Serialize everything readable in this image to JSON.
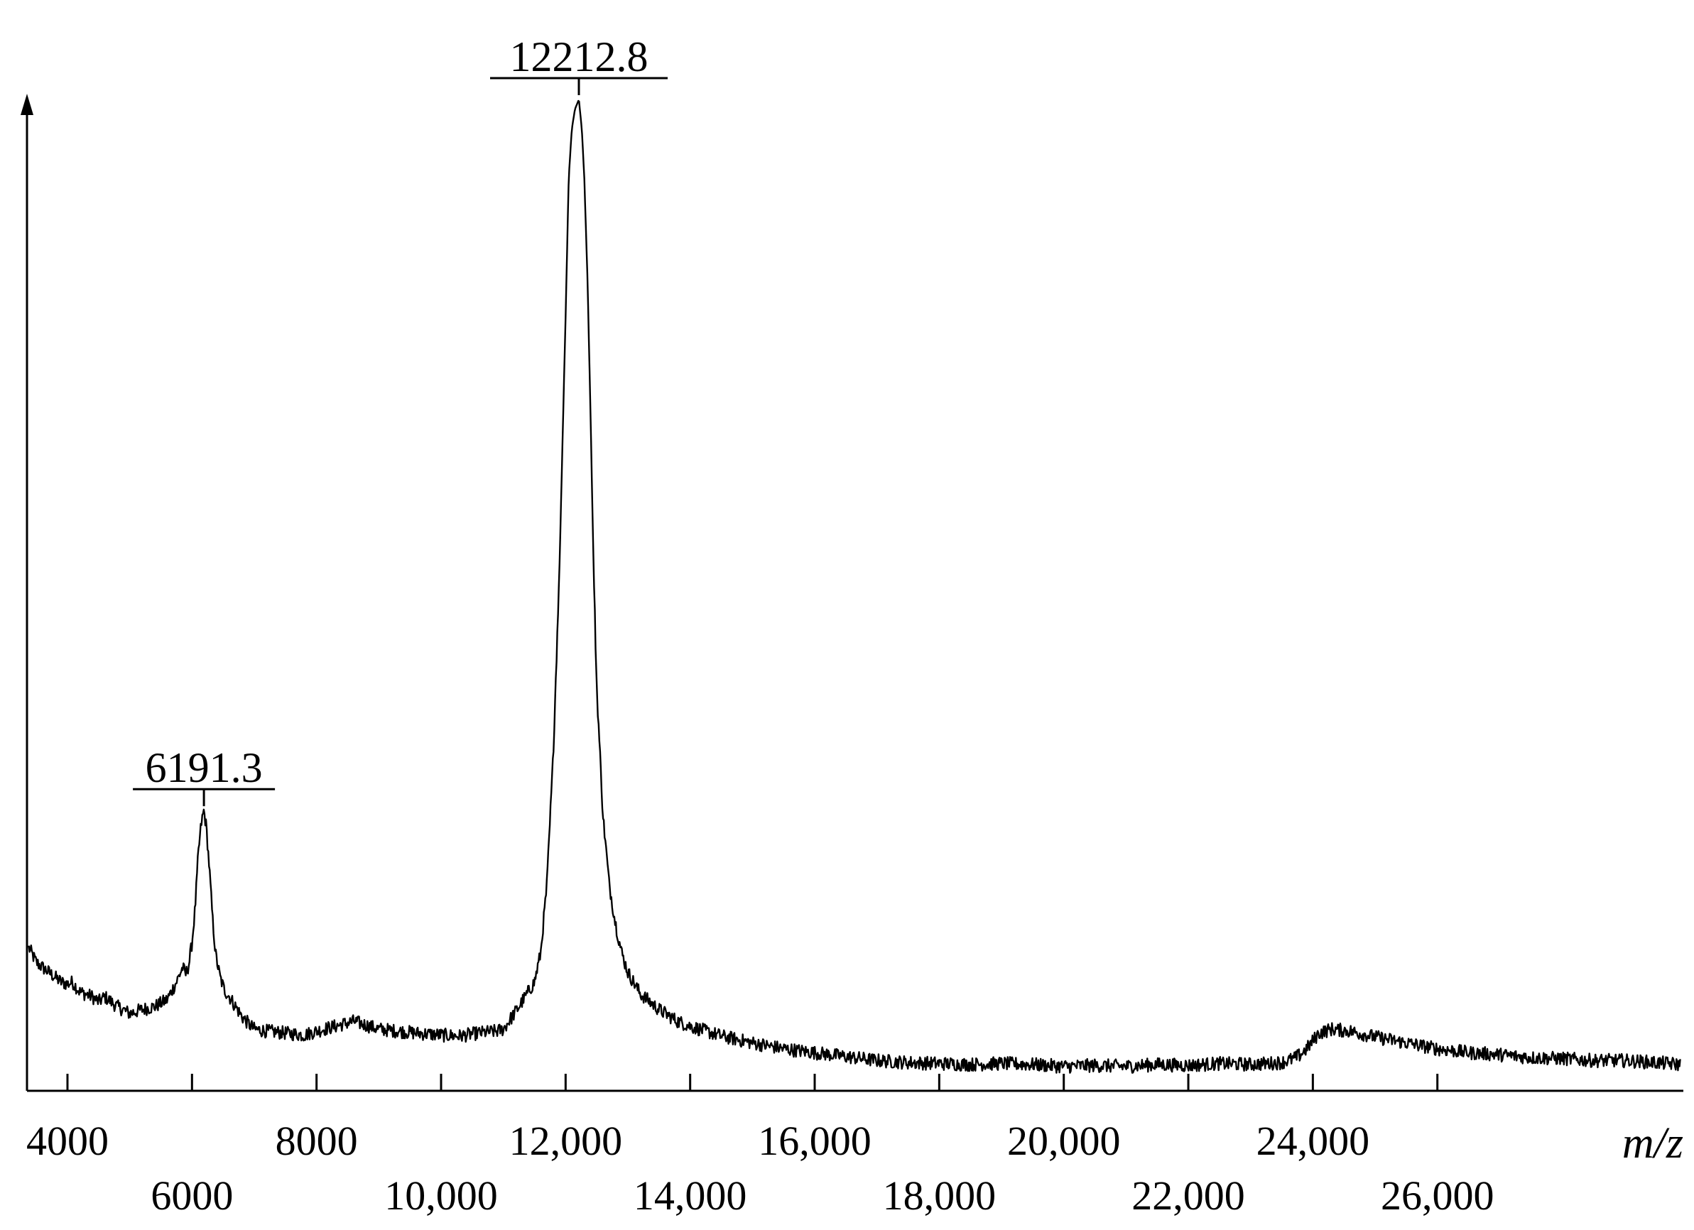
{
  "chart_data": {
    "type": "line",
    "title": "",
    "xlabel": "m/z",
    "ylabel": "",
    "xlim": [
      3350,
      29950
    ],
    "ylim": [
      0,
      1.0
    ],
    "grid": false,
    "legend": "none",
    "x_ticks": [
      {
        "value": 4000,
        "label": "4000",
        "row": "upper"
      },
      {
        "value": 6000,
        "label": "6000",
        "row": "lower"
      },
      {
        "value": 8000,
        "label": "8000",
        "row": "upper"
      },
      {
        "value": 10000,
        "label": "10,000",
        "row": "lower"
      },
      {
        "value": 12000,
        "label": "12,000",
        "row": "upper"
      },
      {
        "value": 14000,
        "label": "14,000",
        "row": "lower"
      },
      {
        "value": 16000,
        "label": "16,000",
        "row": "upper"
      },
      {
        "value": 18000,
        "label": "18,000",
        "row": "lower"
      },
      {
        "value": 20000,
        "label": "20,000",
        "row": "upper"
      },
      {
        "value": 22000,
        "label": "22,000",
        "row": "lower"
      },
      {
        "value": 24000,
        "label": "24,000",
        "row": "upper"
      },
      {
        "value": 26000,
        "label": "26,000",
        "row": "lower"
      }
    ],
    "annotations": [
      {
        "label": "6191.3",
        "x": 6191.3,
        "y": 0.275
      },
      {
        "label": "12212.8",
        "x": 12212.8,
        "y": 1.0
      }
    ],
    "series": [
      {
        "color": "#000000",
        "x": [
          3380,
          3500,
          3700,
          3900,
          4000,
          4080,
          4200,
          4400,
          4500,
          4600,
          4800,
          5000,
          5200,
          5400,
          5600,
          5750,
          5850,
          5900,
          5950,
          6000,
          6050,
          6100,
          6150,
          6191.3,
          6230,
          6280,
          6330,
          6380,
          6450,
          6520,
          6600,
          6700,
          6800,
          6900,
          7000,
          7200,
          7500,
          7800,
          8000,
          8300,
          8600,
          8800,
          9000,
          9300,
          9600,
          10000,
          10300,
          10600,
          10900,
          11000,
          11200,
          11350,
          11500,
          11600,
          11700,
          11800,
          11900,
          12000,
          12050,
          12100,
          12150,
          12212.8,
          12260,
          12300,
          12350,
          12400,
          12450,
          12500,
          12600,
          12700,
          12800,
          12900,
          13000,
          13200,
          13500,
          13800,
          14000,
          14500,
          15000,
          15500,
          16000,
          16500,
          17000,
          17500,
          18000,
          18500,
          19000,
          19500,
          20000,
          20500,
          21000,
          21500,
          22000,
          22500,
          23000,
          23500,
          23700,
          23800,
          23900,
          24000,
          24100,
          24300,
          24600,
          25000,
          25500,
          26000,
          26500,
          27000,
          27500,
          28000,
          28500,
          29000,
          29500,
          29900
        ],
        "y": [
          0.135,
          0.12,
          0.11,
          0.1,
          0.098,
          0.1,
          0.09,
          0.085,
          0.08,
          0.085,
          0.075,
          0.068,
          0.072,
          0.075,
          0.082,
          0.1,
          0.115,
          0.108,
          0.118,
          0.14,
          0.175,
          0.23,
          0.262,
          0.275,
          0.258,
          0.215,
          0.165,
          0.128,
          0.105,
          0.092,
          0.085,
          0.075,
          0.065,
          0.058,
          0.052,
          0.05,
          0.048,
          0.046,
          0.05,
          0.055,
          0.06,
          0.056,
          0.052,
          0.05,
          0.048,
          0.046,
          0.045,
          0.048,
          0.05,
          0.052,
          0.07,
          0.085,
          0.1,
          0.13,
          0.2,
          0.33,
          0.52,
          0.78,
          0.92,
          0.97,
          0.99,
          1.0,
          0.97,
          0.92,
          0.82,
          0.68,
          0.52,
          0.4,
          0.27,
          0.2,
          0.16,
          0.13,
          0.11,
          0.088,
          0.072,
          0.06,
          0.055,
          0.045,
          0.038,
          0.032,
          0.028,
          0.024,
          0.02,
          0.018,
          0.017,
          0.016,
          0.017,
          0.016,
          0.014,
          0.015,
          0.014,
          0.016,
          0.015,
          0.017,
          0.016,
          0.018,
          0.022,
          0.026,
          0.032,
          0.04,
          0.048,
          0.052,
          0.05,
          0.044,
          0.038,
          0.032,
          0.028,
          0.026,
          0.023,
          0.022,
          0.02,
          0.02,
          0.018,
          0.016
        ]
      }
    ]
  }
}
